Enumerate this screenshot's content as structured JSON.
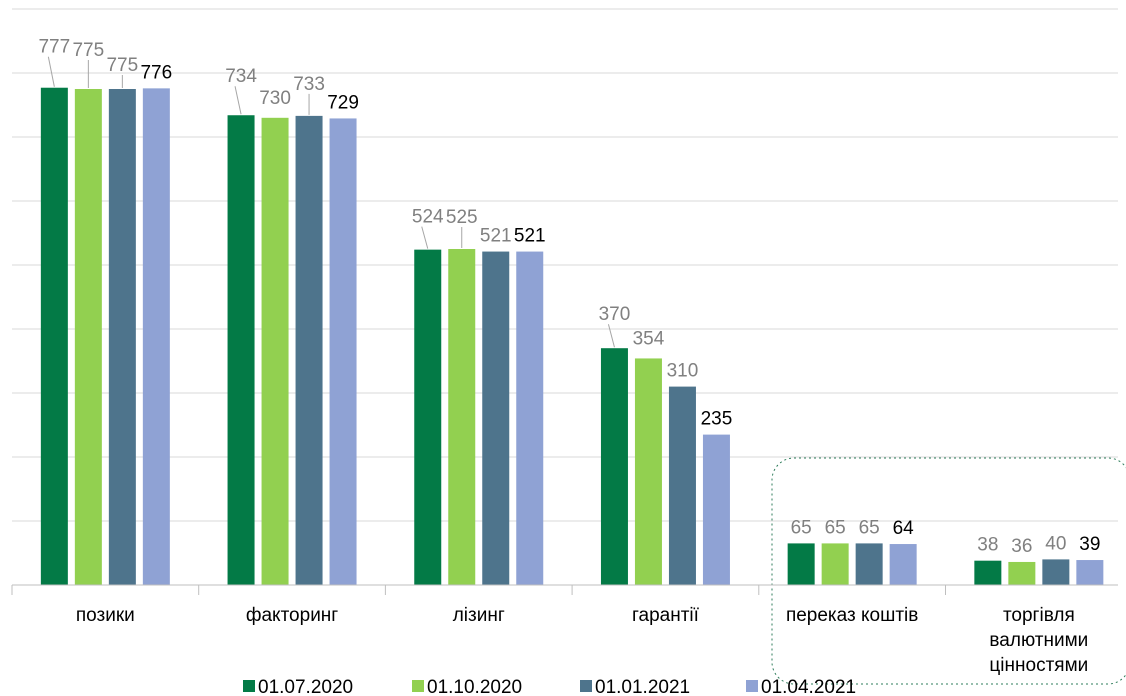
{
  "chart_data": {
    "type": "bar",
    "title": "",
    "xlabel": "",
    "ylabel": "",
    "ylim": [
      0,
      900
    ],
    "grid": true,
    "legend_position": "bottom",
    "categories": [
      [
        "позики"
      ],
      [
        "факторинг"
      ],
      [
        "лізинг"
      ],
      [
        "гарантії"
      ],
      [
        "переказ коштів"
      ],
      [
        "торгівля",
        "валютними",
        "цінностями"
      ]
    ],
    "series": [
      {
        "name": "01.07.2020",
        "color": "#037A46",
        "values": [
          777,
          734,
          524,
          370,
          65,
          38
        ]
      },
      {
        "name": "01.10.2020",
        "color": "#92D050",
        "values": [
          775,
          730,
          525,
          354,
          65,
          36
        ]
      },
      {
        "name": "01.01.2021",
        "color": "#4E748C",
        "values": [
          775,
          733,
          521,
          310,
          65,
          40
        ]
      },
      {
        "name": "01.04.2021",
        "color": "#8FA2D4",
        "values": [
          776,
          729,
          521,
          235,
          64,
          39
        ]
      }
    ],
    "label_colors": {
      "past": "#808080",
      "latest": "#000000"
    },
    "highlight_box": {
      "categories": [
        "переказ коштів",
        "торгівля валютними цінностями"
      ],
      "style": "dashed",
      "color": "#2E7D5B"
    }
  }
}
